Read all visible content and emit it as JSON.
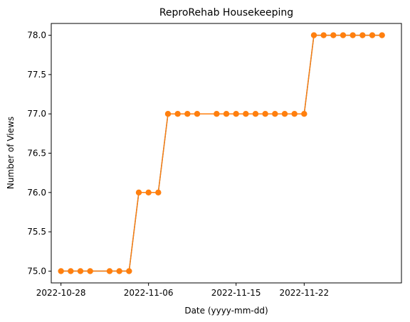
{
  "chart_data": {
    "type": "line",
    "title": "ReproRehab Housekeeping",
    "xlabel": "Date (yyyy-mm-dd)",
    "ylabel": "Number of Views",
    "x_tick_labels": [
      "2022-10-28",
      "2022-11-06",
      "2022-11-15",
      "2022-11-22"
    ],
    "y_tick_labels": [
      "75.0",
      "75.5",
      "76.0",
      "76.5",
      "77.0",
      "77.5",
      "78.0"
    ],
    "ylim": [
      74.85,
      78.15
    ],
    "xlim": [
      "2022-10-27",
      "2022-12-02"
    ],
    "grid": false,
    "colors": {
      "line": "#ff7f0e",
      "underlay": "#1f77b4"
    },
    "series": [
      {
        "x": [
          "2022-10-28",
          "2022-10-29",
          "2022-10-30",
          "2022-10-31",
          "2022-11-02",
          "2022-11-03",
          "2022-11-04",
          "2022-11-05",
          "2022-11-06",
          "2022-11-07",
          "2022-11-08",
          "2022-11-09",
          "2022-11-10",
          "2022-11-11",
          "2022-11-13",
          "2022-11-14",
          "2022-11-15",
          "2022-11-16",
          "2022-11-17",
          "2022-11-18",
          "2022-11-19",
          "2022-11-20",
          "2022-11-21",
          "2022-11-22",
          "2022-11-23",
          "2022-11-24",
          "2022-11-25",
          "2022-11-26",
          "2022-11-27",
          "2022-11-28",
          "2022-11-29",
          "2022-11-30"
        ],
        "values": [
          75,
          75,
          75,
          75,
          75,
          75,
          75,
          76,
          76,
          76,
          77,
          77,
          77,
          77,
          77,
          77,
          77,
          77,
          77,
          77,
          77,
          77,
          77,
          77,
          78,
          78,
          78,
          78,
          78,
          78,
          78,
          78
        ]
      }
    ]
  }
}
